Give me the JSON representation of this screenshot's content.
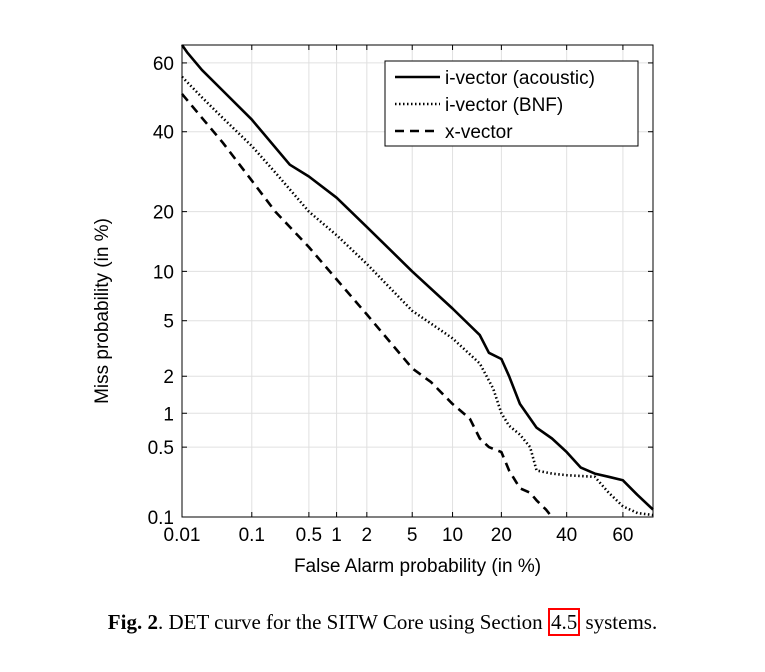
{
  "chart_data": {
    "type": "line",
    "title": "",
    "xlabel": "False Alarm probability (in %)",
    "ylabel": "Miss probability (in %)",
    "x_scale": "normal-deviate (DET)",
    "y_scale": "normal-deviate (DET)",
    "xlim": [
      0.01,
      70
    ],
    "ylim": [
      0.1,
      65
    ],
    "x_ticks": [
      0.01,
      0.1,
      0.5,
      1,
      2,
      5,
      10,
      20,
      40,
      60
    ],
    "x_tick_labels": [
      "0.01",
      "0.1",
      "0.5",
      "1",
      "2",
      "5",
      "10",
      "20",
      "40",
      "60"
    ],
    "y_ticks": [
      0.1,
      0.5,
      1,
      2,
      5,
      10,
      20,
      40,
      60
    ],
    "y_tick_labels": [
      "0.1",
      "0.5",
      "1",
      "2",
      "5",
      "10",
      "20",
      "40",
      "60"
    ],
    "grid": true,
    "legend_position": "top-right",
    "series": [
      {
        "name": "i-vector (acoustic)",
        "line_style": "solid",
        "color": "#000000",
        "x": [
          0.01,
          0.012,
          0.02,
          0.04,
          0.1,
          0.3,
          0.5,
          1,
          2,
          5,
          10,
          15,
          17,
          20,
          22,
          25,
          30,
          35,
          40,
          45,
          50,
          55,
          60,
          65,
          70
        ],
        "y": [
          65,
          63,
          58,
          52,
          43.5,
          31,
          28,
          23,
          17,
          10,
          6,
          4,
          3,
          2.7,
          2,
          1.2,
          0.75,
          0.6,
          0.45,
          0.32,
          0.28,
          0.26,
          0.24,
          0.17,
          0.12
        ]
      },
      {
        "name": "i-vector (BNF)",
        "line_style": "dotted",
        "color": "#000000",
        "x": [
          0.01,
          0.02,
          0.04,
          0.1,
          0.2,
          0.5,
          1,
          2,
          5,
          10,
          15,
          18,
          20,
          22,
          25,
          28,
          30,
          35,
          40,
          50,
          55,
          60,
          65,
          70
        ],
        "y": [
          56,
          50,
          44,
          36,
          29,
          20,
          15.5,
          11,
          5.8,
          3.8,
          2.5,
          1.6,
          1,
          0.78,
          0.65,
          0.5,
          0.3,
          0.28,
          0.27,
          0.26,
          0.18,
          0.13,
          0.11,
          0.105
        ]
      },
      {
        "name": "x-vector",
        "line_style": "dashed",
        "color": "#000000",
        "x": [
          0.01,
          0.02,
          0.04,
          0.1,
          0.2,
          0.5,
          1,
          2,
          5,
          7,
          10,
          13,
          15,
          17,
          20,
          22,
          25,
          28,
          30,
          33,
          35
        ],
        "y": [
          51,
          44,
          37,
          27,
          20,
          13.5,
          9,
          5.5,
          2.3,
          1.8,
          1.2,
          0.9,
          0.6,
          0.5,
          0.45,
          0.3,
          0.2,
          0.18,
          0.15,
          0.12,
          0.1
        ]
      }
    ]
  },
  "caption": {
    "label": "Fig. 2",
    "text_before": ". DET curve for the SITW Core using Section ",
    "link": "4.5",
    "text_after": " systems.",
    "link_box_color": "#ff0000"
  }
}
